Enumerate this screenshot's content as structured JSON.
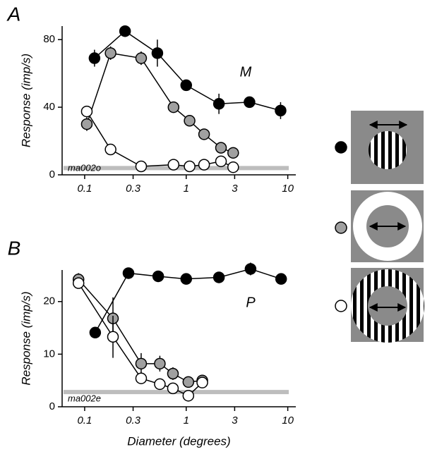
{
  "chart_data": [
    {
      "type": "line",
      "panel_label": "A",
      "annotation": "M",
      "y_label": "Response (imp/s)",
      "baseline_label": "ma002o",
      "baseline": 4,
      "xscale": "log",
      "xlim": [
        0.06,
        12
      ],
      "xticks": [
        0.1,
        0.3,
        1,
        3,
        10
      ],
      "ylim": [
        0,
        88
      ],
      "yticks": [
        0,
        40,
        80
      ],
      "series": [
        {
          "color": "#000000",
          "x": [
            0.125,
            0.25,
            0.52,
            1.0,
            2.1,
            4.2,
            8.5
          ],
          "values": [
            69,
            85,
            72,
            53,
            42,
            43,
            38
          ],
          "errors": [
            5,
            2,
            8,
            3,
            6,
            2,
            5
          ]
        },
        {
          "color": "#a0a0a0",
          "x": [
            0.105,
            0.18,
            0.36,
            0.75,
            1.08,
            1.5,
            2.2,
            2.9
          ],
          "values": [
            30,
            72,
            69,
            40,
            32,
            24,
            16,
            13
          ],
          "errors": [
            4,
            4,
            4,
            null,
            3,
            null,
            3,
            null
          ]
        },
        {
          "color": "#ffffff",
          "x": [
            0.105,
            0.18,
            0.36,
            0.75,
            1.08,
            1.5,
            2.2,
            2.9
          ],
          "values": [
            37.5,
            15,
            5,
            6,
            5,
            6,
            8,
            4.5
          ],
          "errors": [
            null,
            null,
            null,
            null,
            null,
            null,
            2,
            null
          ]
        }
      ]
    },
    {
      "type": "line",
      "panel_label": "B",
      "annotation": "P",
      "y_label": "Response (imp/s)",
      "x_label": "Diameter (degrees)",
      "baseline_label": "ma002e",
      "baseline": 2.8,
      "xscale": "log",
      "xlim": [
        0.06,
        12
      ],
      "xticks": [
        0.1,
        0.3,
        1,
        3,
        10
      ],
      "ylim": [
        0,
        26
      ],
      "yticks": [
        0,
        10,
        20
      ],
      "series": [
        {
          "color": "#000000",
          "x": [
            0.127,
            0.27,
            0.53,
            1.0,
            2.1,
            4.3,
            8.6
          ],
          "values": [
            14.1,
            25.4,
            24.8,
            24.3,
            24.6,
            26.2,
            24.3
          ],
          "errors": [
            null,
            1,
            1,
            0.5,
            1,
            1.2,
            0.8
          ]
        },
        {
          "color": "#a0a0a0",
          "x": [
            0.087,
            0.19,
            0.36,
            0.55,
            0.74,
            1.05,
            1.44
          ],
          "values": [
            24.2,
            16.8,
            8.2,
            8.2,
            6.3,
            4.7,
            5.0
          ],
          "errors": [
            1.2,
            4,
            2,
            1.5,
            1.2,
            1,
            1
          ]
        },
        {
          "color": "#ffffff",
          "x": [
            0.087,
            0.19,
            0.36,
            0.55,
            0.74,
            1.05,
            1.44
          ],
          "values": [
            23.5,
            13.3,
            5.4,
            4.3,
            3.5,
            2.1,
            4.6
          ],
          "errors": [
            null,
            4,
            null,
            null,
            null,
            null,
            1
          ]
        }
      ]
    }
  ]
}
